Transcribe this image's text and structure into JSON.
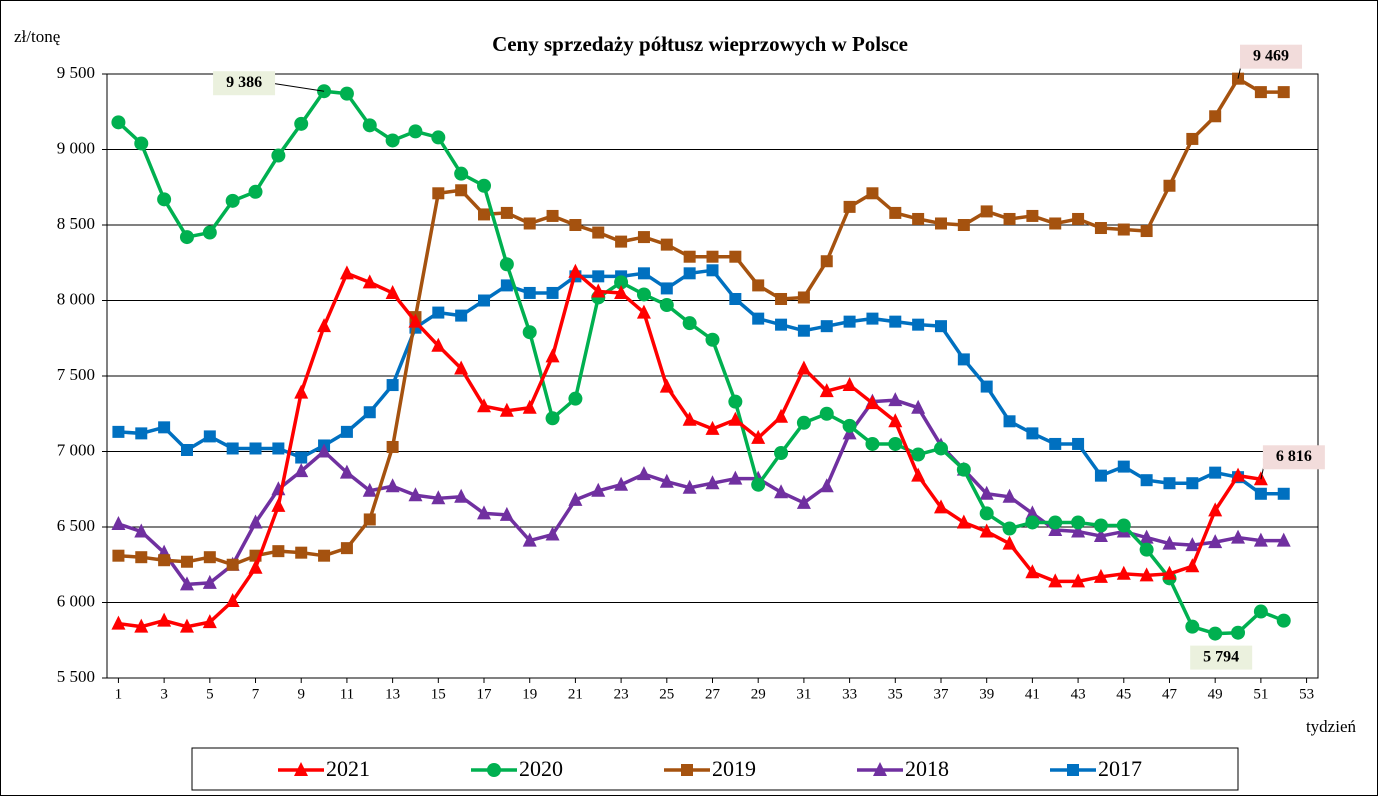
{
  "chart_data": {
    "type": "line",
    "title": "Ceny sprzedaży półtusz wieprzowych w Polsce",
    "y_label": "zł/tonę",
    "x_label": "tydzień",
    "x": [
      1,
      2,
      3,
      4,
      5,
      6,
      7,
      8,
      9,
      10,
      11,
      12,
      13,
      14,
      15,
      16,
      17,
      18,
      19,
      20,
      21,
      22,
      23,
      24,
      25,
      26,
      27,
      28,
      29,
      30,
      31,
      32,
      33,
      34,
      35,
      36,
      37,
      38,
      39,
      40,
      41,
      42,
      43,
      44,
      45,
      46,
      47,
      48,
      49,
      50,
      51,
      52
    ],
    "xlim": [
      0.5,
      53.5
    ],
    "xticks": [
      1,
      3,
      5,
      7,
      9,
      11,
      13,
      15,
      17,
      19,
      21,
      23,
      25,
      27,
      29,
      31,
      33,
      35,
      37,
      39,
      41,
      43,
      45,
      47,
      49,
      51,
      53
    ],
    "ylim": [
      5500,
      9500
    ],
    "yticks": [
      {
        "value": 5500,
        "label": "5 500"
      },
      {
        "value": 6000,
        "label": "6 000"
      },
      {
        "value": 6500,
        "label": "6 500"
      },
      {
        "value": 7000,
        "label": "7 000"
      },
      {
        "value": 7500,
        "label": "7 500"
      },
      {
        "value": 8000,
        "label": "8 000"
      },
      {
        "value": 8500,
        "label": "8 500"
      },
      {
        "value": 9000,
        "label": "9 000"
      },
      {
        "value": 9500,
        "label": "9 500"
      }
    ],
    "grid": true,
    "legend": "bottom",
    "series": [
      {
        "name": "2021",
        "color": "#ff0000",
        "marker": "triangle",
        "values": [
          5860,
          5840,
          5880,
          5840,
          5870,
          6010,
          6230,
          6640,
          7390,
          7830,
          8180,
          8120,
          8050,
          7860,
          7700,
          7550,
          7300,
          7270,
          7290,
          7630,
          8190,
          8060,
          8050,
          7920,
          7430,
          7210,
          7150,
          7210,
          7090,
          7230,
          7550,
          7400,
          7440,
          7320,
          7200,
          6840,
          6630,
          6530,
          6470,
          6390,
          6200,
          6140,
          6140,
          6170,
          6190,
          6180,
          6190,
          6240,
          6610,
          6840,
          6816,
          null
        ],
        "value_labels": [
          null,
          null,
          null,
          null,
          null,
          null,
          null,
          null,
          null,
          null,
          null,
          null,
          null,
          null,
          null,
          null,
          null,
          null,
          null,
          null,
          null,
          null,
          null,
          null,
          null,
          null,
          null,
          null,
          null,
          null,
          null,
          null,
          null,
          null,
          null,
          null,
          null,
          null,
          null,
          null,
          null,
          null,
          null,
          null,
          null,
          null,
          null,
          null,
          null,
          null,
          "6 816",
          null
        ]
      },
      {
        "name": "2020",
        "color": "#00b050",
        "marker": "circle",
        "values": [
          9180,
          9040,
          8670,
          8420,
          8450,
          8660,
          8720,
          8960,
          9170,
          9386,
          9370,
          9160,
          9060,
          9120,
          9080,
          8840,
          8760,
          8240,
          7790,
          7220,
          7350,
          8020,
          8120,
          8040,
          7970,
          7850,
          7740,
          7330,
          6780,
          6990,
          7190,
          7250,
          7170,
          7050,
          7050,
          6980,
          7020,
          6880,
          6590,
          6490,
          6530,
          6530,
          6530,
          6510,
          6510,
          6350,
          6160,
          5840,
          5794,
          5800,
          5940,
          5880
        ],
        "value_labels": [
          null,
          null,
          null,
          null,
          null,
          null,
          null,
          null,
          null,
          "9 386",
          null,
          null,
          null,
          null,
          null,
          null,
          null,
          null,
          null,
          null,
          null,
          null,
          null,
          null,
          null,
          null,
          null,
          null,
          null,
          null,
          null,
          null,
          null,
          null,
          null,
          null,
          null,
          null,
          null,
          null,
          null,
          null,
          null,
          null,
          null,
          null,
          null,
          null,
          "5 794",
          null,
          null,
          null
        ]
      },
      {
        "name": "2019",
        "color": "#a5520f",
        "marker": "square",
        "values": [
          6310,
          6300,
          6280,
          6270,
          6300,
          6250,
          6310,
          6340,
          6330,
          6310,
          6360,
          6550,
          7030,
          7890,
          8710,
          8730,
          8570,
          8580,
          8510,
          8560,
          8500,
          8450,
          8390,
          8420,
          8370,
          8290,
          8290,
          8290,
          8100,
          8010,
          8020,
          8260,
          8620,
          8710,
          8580,
          8540,
          8510,
          8500,
          8590,
          8540,
          8560,
          8510,
          8540,
          8480,
          8470,
          8460,
          8760,
          9070,
          9220,
          9469,
          9380,
          9380
        ],
        "value_labels": [
          null,
          null,
          null,
          null,
          null,
          null,
          null,
          null,
          null,
          null,
          null,
          null,
          null,
          null,
          null,
          null,
          null,
          null,
          null,
          null,
          null,
          null,
          null,
          null,
          null,
          null,
          null,
          null,
          null,
          null,
          null,
          null,
          null,
          null,
          null,
          null,
          null,
          null,
          null,
          null,
          null,
          null,
          null,
          null,
          null,
          null,
          null,
          null,
          null,
          "9 469",
          null,
          null
        ]
      },
      {
        "name": "2018",
        "color": "#7030a0",
        "marker": "triangle",
        "values": [
          6520,
          6470,
          6330,
          6120,
          6130,
          6250,
          6530,
          6750,
          6870,
          7000,
          6860,
          6740,
          6770,
          6710,
          6690,
          6700,
          6590,
          6580,
          6410,
          6450,
          6680,
          6740,
          6780,
          6850,
          6800,
          6760,
          6790,
          6820,
          6820,
          6730,
          6660,
          6770,
          7120,
          7330,
          7340,
          7290,
          7040,
          6880,
          6720,
          6700,
          6590,
          6480,
          6470,
          6440,
          6470,
          6430,
          6390,
          6380,
          6400,
          6430,
          6410,
          6410
        ]
      },
      {
        "name": "2017",
        "color": "#0070c0",
        "marker": "square",
        "values": [
          7130,
          7120,
          7160,
          7010,
          7100,
          7020,
          7020,
          7020,
          6960,
          7040,
          7130,
          7260,
          7440,
          7820,
          7920,
          7900,
          8000,
          8100,
          8050,
          8050,
          8160,
          8160,
          8160,
          8180,
          8080,
          8180,
          8200,
          8010,
          7880,
          7840,
          7800,
          7830,
          7860,
          7880,
          7860,
          7840,
          7830,
          7610,
          7430,
          7200,
          7120,
          7050,
          7050,
          6840,
          6900,
          6810,
          6790,
          6790,
          6860,
          6830,
          6720,
          6720
        ]
      }
    ]
  }
}
